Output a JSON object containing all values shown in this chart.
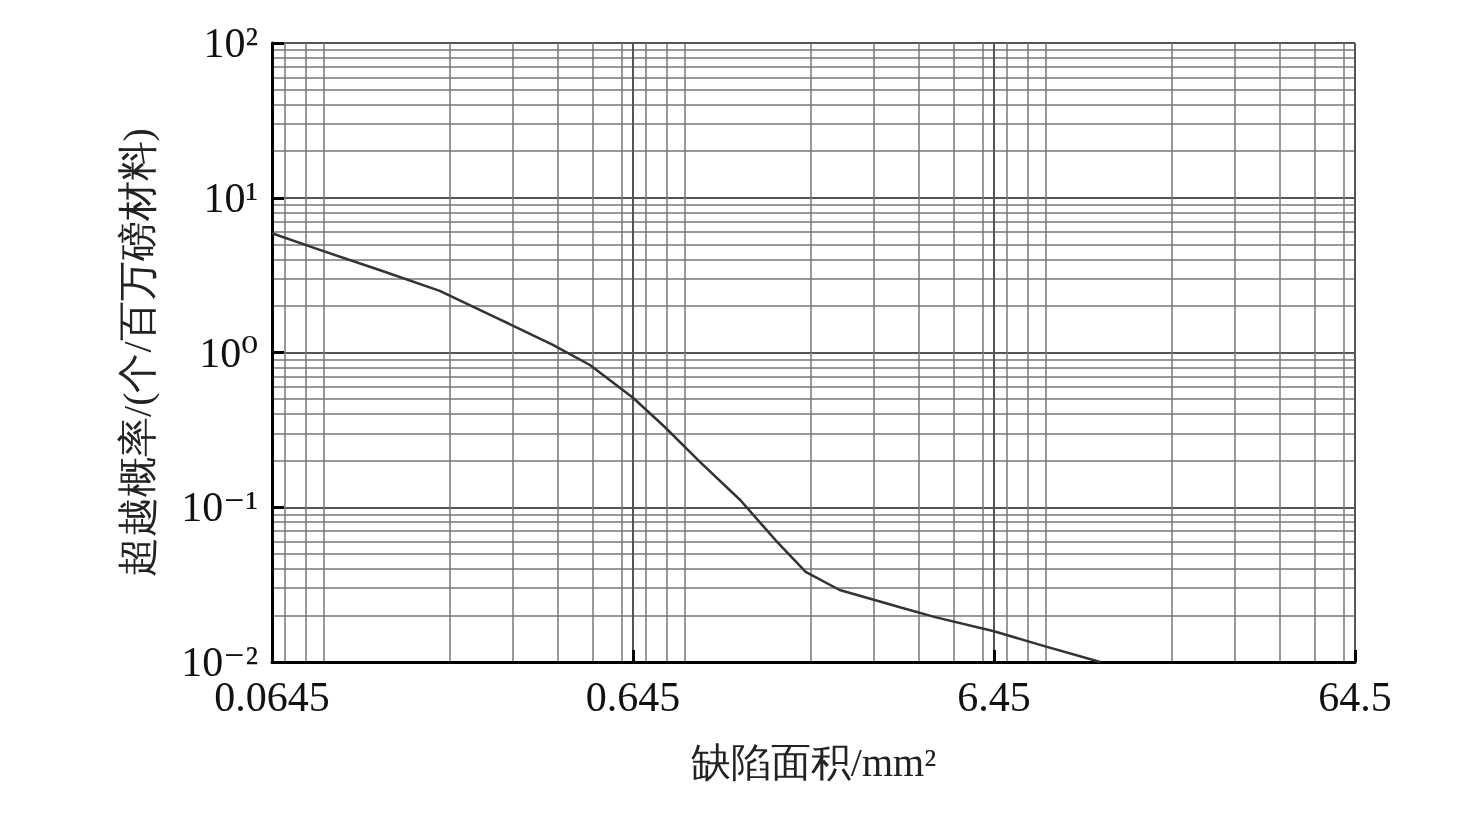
{
  "chart_data": {
    "type": "line",
    "xlabel": "缺陷面积/mm²",
    "ylabel": "超越概率/(个/百万磅材料)",
    "log": "xy",
    "grid": true,
    "marker": "none",
    "line_style": "solid",
    "xlim": [
      0.0645,
      64.5
    ],
    "xticks": [
      0.0645,
      0.645,
      6.45,
      64.5
    ],
    "ylim": [
      0.01,
      100
    ],
    "yticks": [
      {
        "value": 0.01,
        "label": "10⁻²"
      },
      {
        "value": 0.1,
        "label": "10⁻¹"
      },
      {
        "value": 1,
        "label": "10⁰"
      },
      {
        "value": 10,
        "label": "10¹"
      },
      {
        "value": 100,
        "label": "10²"
      }
    ],
    "series": [
      {
        "color": "#333333",
        "x": [
          0.0645,
          0.0875,
          0.1286,
          0.188,
          0.271,
          0.387,
          0.49,
          0.645,
          0.79,
          0.99,
          1.28,
          1.6,
          1.94,
          2.41,
          3.54,
          4.43,
          6.45,
          8.65,
          12.7
        ],
        "values": [
          5.9,
          4.6,
          3.4,
          2.5,
          1.67,
          1.12,
          0.83,
          0.51,
          0.33,
          0.196,
          0.111,
          0.0614,
          0.0382,
          0.0292,
          0.0226,
          0.0195,
          0.0158,
          0.0129,
          0.01
        ]
      }
    ]
  }
}
